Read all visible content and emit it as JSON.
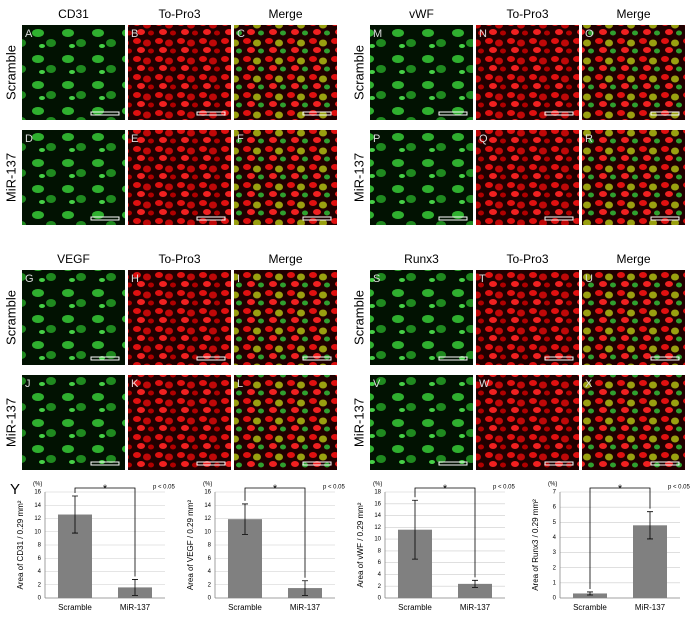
{
  "figure_label": "Y",
  "groups": [
    {
      "columns": [
        "CD31",
        "To-Pro3",
        "Merge"
      ],
      "rows": [
        "Scramble",
        "MiR-137"
      ],
      "letters": [
        [
          "A",
          "B",
          "C"
        ],
        [
          "D",
          "E",
          "F"
        ]
      ]
    },
    {
      "columns": [
        "vWF",
        "To-Pro3",
        "Merge"
      ],
      "rows": [
        "Scramble",
        "MiR-137"
      ],
      "letters": [
        [
          "M",
          "N",
          "O"
        ],
        [
          "P",
          "Q",
          "R"
        ]
      ]
    },
    {
      "columns": [
        "VEGF",
        "To-Pro3",
        "Merge"
      ],
      "rows": [
        "Scramble",
        "MiR-137"
      ],
      "letters": [
        [
          "G",
          "H",
          "I"
        ],
        [
          "J",
          "K",
          "L"
        ]
      ]
    },
    {
      "columns": [
        "Runx3",
        "To-Pro3",
        "Merge"
      ],
      "rows": [
        "Scramble",
        "MiR-137"
      ],
      "letters": [
        [
          "S",
          "T",
          "U"
        ],
        [
          "V",
          "W",
          "X"
        ]
      ]
    }
  ],
  "chart_data": [
    {
      "type": "bar",
      "unit": "(%)",
      "y_label": "Area of CD31 / 0.29 mm²",
      "categories": [
        "Scramble",
        "MiR-137"
      ],
      "values": [
        12.6,
        1.6
      ],
      "errors": [
        2.8,
        1.2
      ],
      "color": "#808080",
      "ylim": [
        0,
        16
      ],
      "yticks": [
        0,
        2,
        4,
        6,
        8,
        10,
        12,
        14,
        16
      ],
      "grid": true,
      "annotation": "*",
      "p_label": "p < 0.05"
    },
    {
      "type": "bar",
      "unit": "(%)",
      "y_label": "Area of VEGF / 0.29 mm²",
      "categories": [
        "Scramble",
        "MiR-137"
      ],
      "values": [
        11.9,
        1.5
      ],
      "errors": [
        2.3,
        1.1
      ],
      "color": "#808080",
      "ylim": [
        0,
        16
      ],
      "yticks": [
        0,
        2,
        4,
        6,
        8,
        10,
        12,
        14,
        16
      ],
      "grid": true,
      "annotation": "*",
      "p_label": "p < 0.05"
    },
    {
      "type": "bar",
      "unit": "(%)",
      "y_label": "Area of vWF / 0.29 mm²",
      "categories": [
        "Scramble",
        "MiR-137"
      ],
      "values": [
        11.6,
        2.4
      ],
      "errors": [
        5.0,
        0.6
      ],
      "color": "#808080",
      "ylim": [
        0,
        18
      ],
      "yticks": [
        0,
        2,
        4,
        6,
        8,
        10,
        12,
        14,
        16,
        18
      ],
      "grid": true,
      "annotation": "*",
      "p_label": "p < 0.05"
    },
    {
      "type": "bar",
      "unit": "(%)",
      "y_label": "Area of Runx3 / 0.29 mm²",
      "categories": [
        "Scramble",
        "MiR-137"
      ],
      "values": [
        0.3,
        4.8
      ],
      "errors": [
        0.1,
        0.9
      ],
      "color": "#808080",
      "ylim": [
        0,
        7
      ],
      "yticks": [
        0,
        1,
        2,
        3,
        4,
        5,
        6,
        7
      ],
      "grid": true,
      "annotation": "*",
      "p_label": "p < 0.05"
    }
  ]
}
